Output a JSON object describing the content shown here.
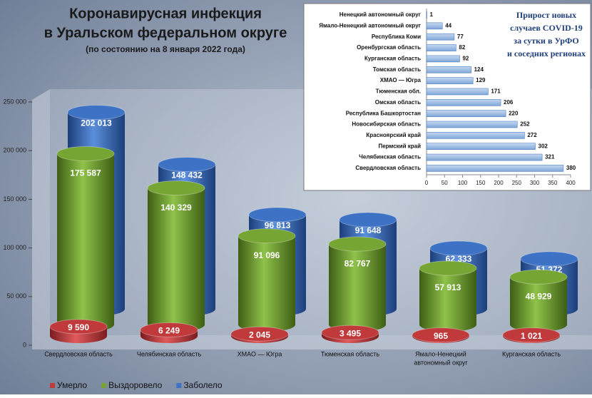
{
  "chart_data": [
    {
      "type": "bar3d",
      "title": [
        "Коронавирусная инфекция",
        "в Уральском федеральном округе"
      ],
      "subtitle": "(по состоянию на 8 января 2022 года)",
      "categories": [
        [
          "Свердловская область"
        ],
        [
          "Челябинская область"
        ],
        [
          "ХМАО — Югра"
        ],
        [
          "Тюменская область"
        ],
        [
          "Ямало-Ненецкий",
          "автономный округ"
        ],
        [
          "Курганская область"
        ]
      ],
      "series": [
        {
          "name": "Умерло",
          "color": "#c0393b",
          "values": [
            9590,
            6249,
            2045,
            3495,
            965,
            1021
          ],
          "value_labels": [
            "9 590",
            "6 249",
            "2 045",
            "3 495",
            "965",
            "1 021"
          ]
        },
        {
          "name": "Выздоровело",
          "color": "#76a533",
          "values": [
            175587,
            140329,
            91096,
            82767,
            57913,
            48929
          ],
          "value_labels": [
            "175 587",
            "140 329",
            "91 096",
            "82 767",
            "57 913",
            "48 929"
          ]
        },
        {
          "name": "Заболело",
          "color": "#3d72c4",
          "values": [
            202013,
            148432,
            96813,
            91648,
            62333,
            51372
          ],
          "value_labels": [
            "202 013",
            "148 432",
            "96 813",
            "91 648",
            "62 333",
            "51 372"
          ]
        }
      ],
      "ylim": [
        0,
        250000
      ],
      "yticks": [
        0,
        {
          "value": 50000,
          "label": "50 000"
        },
        {
          "value": 100000,
          "label": "100 000"
        },
        {
          "value": 150000,
          "label": "150 000"
        },
        {
          "value": 200000,
          "label": "200 000"
        },
        {
          "value": 250000,
          "label": "250 000"
        }
      ],
      "legend": "bottom"
    },
    {
      "type": "barh",
      "title": [
        "Прирост новых",
        "случаев COVID-19",
        "за сутки в УрФО",
        "и соседних регионах"
      ],
      "categories": [
        "Ненецкий автономный округ",
        "Ямало-Ненецкий автономный округ",
        "Республика Коми",
        "Оренбургская область",
        "Курганская область",
        "Томская область",
        "ХМАО — Югра",
        "Тюменская обл.",
        "Омская область",
        "Республика Башкортостан",
        "Новосибирская область",
        "Красноярский край",
        "Пермский край",
        "Челябинская область",
        "Свердловская область"
      ],
      "values": [
        1,
        44,
        77,
        82,
        92,
        124,
        129,
        171,
        206,
        220,
        252,
        272,
        302,
        321,
        380
      ],
      "color": "#8db3e2",
      "xlim": [
        0,
        400
      ],
      "xticks": [
        0,
        50,
        100,
        150,
        200,
        250,
        300,
        350,
        400
      ]
    }
  ]
}
